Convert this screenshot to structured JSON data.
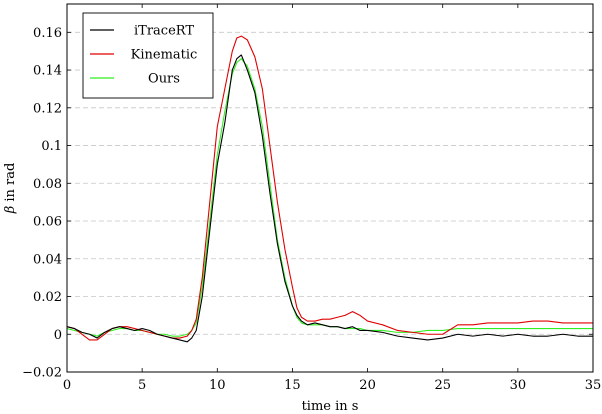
{
  "chart_data": {
    "type": "line",
    "title": "",
    "xlabel": "time in s",
    "ylabel": "β in rad",
    "xlim": [
      0,
      35
    ],
    "ylim": [
      -0.02,
      0.175
    ],
    "xticks": [
      0,
      5,
      10,
      15,
      20,
      25,
      30,
      35
    ],
    "xtick_labels": [
      "0",
      "5",
      "10",
      "15",
      "20",
      "25",
      "30",
      "35"
    ],
    "yticks": [
      -0.02,
      0,
      0.02,
      0.04,
      0.06,
      0.08,
      0.1,
      0.12,
      0.14,
      0.16
    ],
    "ytick_labels": [
      "−0.02",
      "0",
      "0.02",
      "0.04",
      "0.06",
      "0.08",
      "0.1",
      "0.12",
      "0.14",
      "0.16"
    ],
    "grid": "horizontal dashed",
    "legend_position": "top-left",
    "series": [
      {
        "name": "iTraceRT",
        "color": "#000000",
        "x": [
          0,
          0.5,
          1,
          1.5,
          2,
          2.5,
          3,
          3.5,
          4,
          4.5,
          5,
          5.5,
          6,
          6.5,
          7,
          7.5,
          8,
          8.3,
          8.6,
          9,
          9.5,
          10,
          10.5,
          11,
          11.3,
          11.6,
          12,
          12.5,
          13,
          13.5,
          14,
          14.5,
          15,
          15.3,
          15.6,
          16,
          16.5,
          17,
          17.5,
          18,
          18.5,
          19,
          19.5,
          20,
          21,
          22,
          23,
          24,
          25,
          26,
          27,
          28,
          29,
          30,
          31,
          32,
          33,
          34,
          35
        ],
        "values": [
          0.004,
          0.003,
          0.001,
          0.0,
          -0.002,
          0.001,
          0.003,
          0.004,
          0.003,
          0.002,
          0.003,
          0.002,
          0.0,
          -0.001,
          -0.002,
          -0.003,
          -0.004,
          -0.002,
          0.002,
          0.02,
          0.055,
          0.09,
          0.112,
          0.14,
          0.146,
          0.148,
          0.14,
          0.128,
          0.105,
          0.075,
          0.048,
          0.028,
          0.015,
          0.01,
          0.007,
          0.005,
          0.006,
          0.005,
          0.004,
          0.004,
          0.003,
          0.004,
          0.002,
          0.002,
          0.001,
          -0.001,
          -0.002,
          -0.003,
          -0.002,
          0.0,
          -0.001,
          0.0,
          -0.001,
          0.0,
          -0.001,
          -0.001,
          0.0,
          -0.001,
          -0.001
        ]
      },
      {
        "name": "Kinematic",
        "color": "#e00000",
        "x": [
          0,
          0.5,
          1,
          1.5,
          2,
          2.5,
          3,
          3.5,
          4,
          4.5,
          5,
          5.5,
          6,
          6.5,
          7,
          7.5,
          8,
          8.3,
          8.6,
          9,
          9.5,
          10,
          10.5,
          11,
          11.3,
          11.6,
          12,
          12.5,
          13,
          13.5,
          14,
          14.5,
          15,
          15.3,
          15.6,
          16,
          16.5,
          17,
          17.5,
          18,
          18.5,
          19,
          19.5,
          20,
          21,
          22,
          23,
          24,
          25,
          26,
          27,
          28,
          29,
          30,
          31,
          32,
          33,
          34,
          35
        ],
        "values": [
          0.004,
          0.003,
          0.0,
          -0.003,
          -0.003,
          0.0,
          0.003,
          0.004,
          0.004,
          0.003,
          0.002,
          0.001,
          0.0,
          -0.001,
          -0.002,
          -0.002,
          -0.001,
          0.002,
          0.008,
          0.03,
          0.07,
          0.11,
          0.13,
          0.15,
          0.157,
          0.158,
          0.156,
          0.147,
          0.13,
          0.1,
          0.07,
          0.045,
          0.025,
          0.014,
          0.009,
          0.007,
          0.007,
          0.008,
          0.008,
          0.009,
          0.01,
          0.012,
          0.01,
          0.007,
          0.005,
          0.002,
          0.001,
          0.0,
          0.0,
          0.005,
          0.005,
          0.006,
          0.006,
          0.006,
          0.007,
          0.007,
          0.006,
          0.006,
          0.006
        ]
      },
      {
        "name": "Ours",
        "color": "#33ee22",
        "x": [
          0,
          0.5,
          1,
          1.5,
          2,
          2.5,
          3,
          3.5,
          4,
          4.5,
          5,
          5.5,
          6,
          6.5,
          7,
          7.5,
          8,
          8.3,
          8.6,
          9,
          9.5,
          10,
          10.5,
          11,
          11.3,
          11.6,
          12,
          12.5,
          13,
          13.5,
          14,
          14.5,
          15,
          15.3,
          15.6,
          16,
          16.5,
          17,
          17.5,
          18,
          18.5,
          19,
          19.5,
          20,
          21,
          22,
          23,
          24,
          25,
          26,
          27,
          28,
          29,
          30,
          31,
          32,
          33,
          34,
          35
        ],
        "values": [
          0.003,
          0.002,
          0.001,
          0.0,
          -0.001,
          0.001,
          0.002,
          0.003,
          0.003,
          0.002,
          0.002,
          0.001,
          0.0,
          0.0,
          -0.001,
          -0.001,
          0.0,
          0.002,
          0.006,
          0.025,
          0.06,
          0.095,
          0.118,
          0.138,
          0.144,
          0.146,
          0.142,
          0.13,
          0.11,
          0.08,
          0.05,
          0.03,
          0.015,
          0.009,
          0.006,
          0.005,
          0.005,
          0.005,
          0.004,
          0.004,
          0.003,
          0.003,
          0.003,
          0.002,
          0.002,
          0.001,
          0.001,
          0.002,
          0.002,
          0.003,
          0.003,
          0.003,
          0.003,
          0.003,
          0.003,
          0.003,
          0.003,
          0.003,
          0.003
        ]
      }
    ]
  }
}
